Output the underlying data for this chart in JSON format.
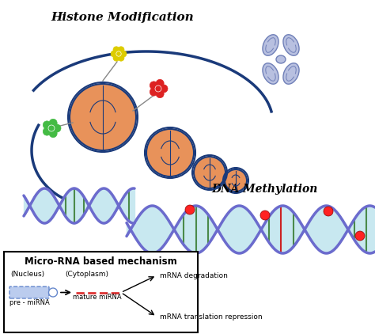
{
  "title": "Histone Modification",
  "dna_label": "DNA Methylation",
  "mirna_box_title": "Micro-RNA based mechanism",
  "nucleus_label": "(Nucleus)",
  "cytoplasm_label": "(Cytoplasm)",
  "pre_mirna_label": "pre - miRNA",
  "mature_mirna_label": "mature miRNA",
  "mrna_deg_label": "mRNA degradation",
  "mrna_rep_label": "mRNA translation repression",
  "bg_color": "#ffffff",
  "dna_strand_color": "#6b6bcd",
  "dna_fill_color": "#c8e8f0",
  "histone_fill": "#e8925a",
  "histone_border": "#1a3a7a",
  "chrom_color": "#a0a8d8",
  "red_dot": "#ff2222",
  "green_flower": "#44bb44",
  "yellow_flower": "#ddcc00",
  "red_flower": "#dd2222",
  "mirna_box_border": "#333333",
  "pre_mirna_color": "#6688cc",
  "mature_mirna_color": "#dd3333",
  "arrow_color": "#111111"
}
